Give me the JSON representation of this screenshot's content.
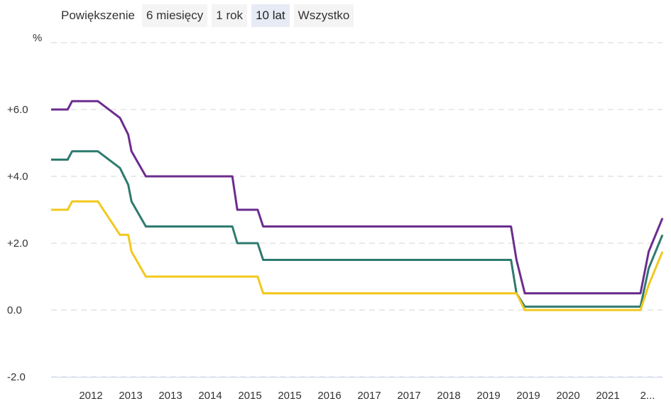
{
  "zoom": {
    "label": "Powiększenie",
    "buttons": [
      "6 miesięcy",
      "1 rok",
      "10 lat",
      "Wszystko"
    ],
    "active_index": 2
  },
  "chart_data": {
    "type": "line",
    "ylabel": "%",
    "ylim": [
      -2,
      8
    ],
    "yticks": [
      -2,
      0,
      2,
      4,
      6
    ],
    "ytick_labels": [
      "-2.0",
      "0.0",
      "+2.0",
      "+4.0",
      "+6.0"
    ],
    "grid": true,
    "xlim": [
      2011.05,
      2022.15
    ],
    "xtick_labels": [
      "2012",
      "2013",
      "2013",
      "2014",
      "2015",
      "2015",
      "2016",
      "2017",
      "2017",
      "2018",
      "2019",
      "2019",
      "2020",
      "2021",
      "2..."
    ],
    "series": [
      {
        "color": "#6b2d8f",
        "x": [
          2011.05,
          2011.35,
          2011.43,
          2011.9,
          2012.3,
          2012.45,
          2012.51,
          2012.77,
          2013.05,
          2013.13,
          2014.34,
          2014.43,
          2014.8,
          2014.9,
          2019.4,
          2019.5,
          2019.65,
          2021.75,
          2021.9,
          2022.15
        ],
        "y": [
          6.0,
          6.0,
          6.25,
          6.25,
          5.75,
          5.25,
          4.75,
          4.0,
          4.0,
          4.0,
          4.0,
          3.0,
          3.0,
          2.5,
          2.5,
          1.5,
          0.5,
          0.5,
          1.75,
          2.75
        ]
      },
      {
        "color": "#2e7a6f",
        "x": [
          2011.05,
          2011.35,
          2011.43,
          2011.9,
          2012.3,
          2012.45,
          2012.51,
          2012.77,
          2013.05,
          2013.13,
          2014.34,
          2014.43,
          2014.8,
          2014.9,
          2019.4,
          2019.5,
          2019.65,
          2021.75,
          2021.9,
          2022.15
        ],
        "y": [
          4.5,
          4.5,
          4.75,
          4.75,
          4.25,
          3.75,
          3.25,
          2.5,
          2.5,
          2.5,
          2.5,
          2.0,
          2.0,
          1.5,
          1.5,
          0.5,
          0.1,
          0.1,
          1.25,
          2.25
        ]
      },
      {
        "color": "#f2c81d",
        "x": [
          2011.05,
          2011.35,
          2011.43,
          2011.9,
          2012.3,
          2012.45,
          2012.51,
          2012.77,
          2013.05,
          2013.13,
          2014.34,
          2014.43,
          2014.8,
          2014.9,
          2019.4,
          2019.5,
          2019.65,
          2021.75,
          2021.9,
          2022.15
        ],
        "y": [
          3.0,
          3.0,
          3.25,
          3.25,
          2.25,
          2.25,
          1.75,
          1.0,
          1.0,
          1.0,
          1.0,
          1.0,
          1.0,
          0.5,
          0.5,
          0.5,
          0.0,
          0.0,
          0.75,
          1.75
        ]
      }
    ]
  }
}
